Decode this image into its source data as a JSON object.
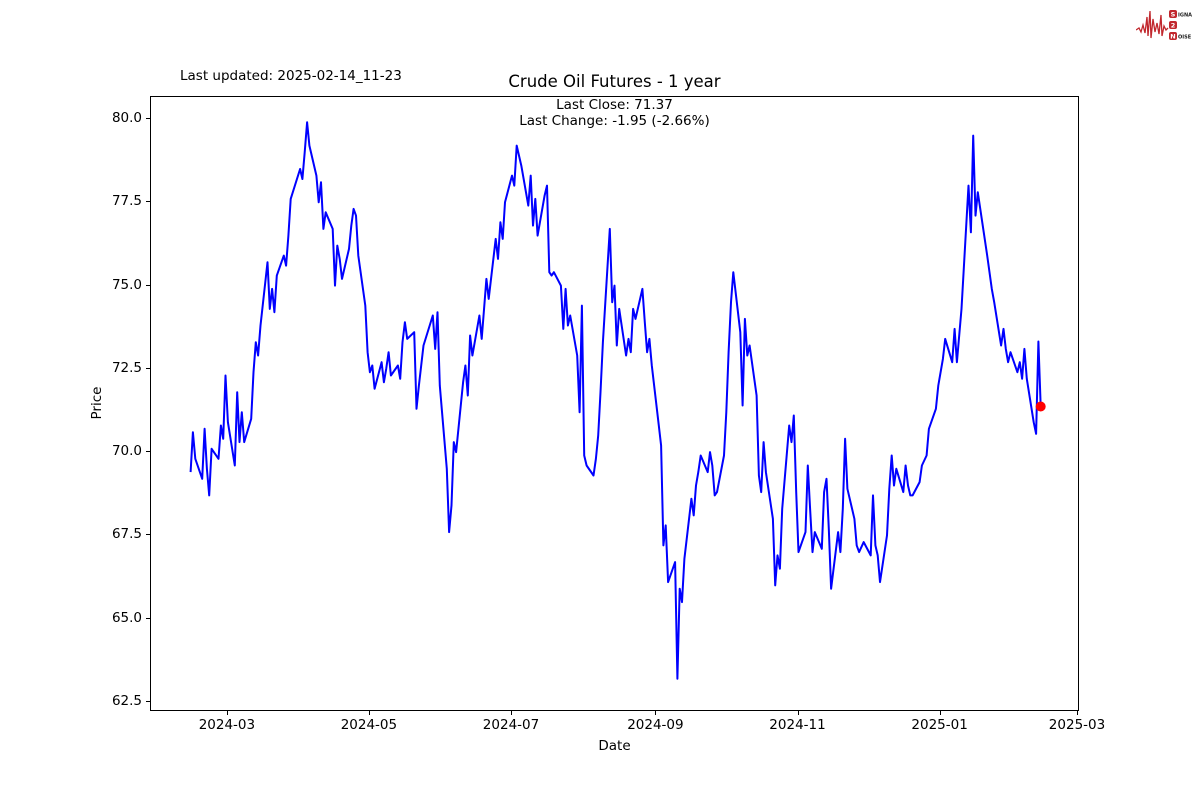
{
  "header": {
    "last_updated": "Last updated: 2025-02-14_11-23"
  },
  "logo": {
    "color": "#c1272d",
    "rows": [
      {
        "boxed": "S",
        "rest": "IGNAL"
      },
      {
        "boxed": "2",
        "rest": ""
      },
      {
        "boxed": "N",
        "rest": "OISE"
      }
    ]
  },
  "chart_data": {
    "type": "line",
    "title": "Crude Oil Futures - 1 year",
    "xlabel": "Date",
    "ylabel": "Price",
    "annotation_line1": "Last Close: 71.37",
    "annotation_line2": "Last Change: -1.95 (-2.66%)",
    "last_close": 71.37,
    "last_change": -1.95,
    "last_change_pct": "-2.66%",
    "grid": false,
    "legend": "none",
    "line_color": "#0000ff",
    "line_width": 2,
    "marker": {
      "date": "2025-02-13",
      "price": 71.37,
      "color": "#ff0000",
      "radius": 5
    },
    "x_domain": [
      "2024-01-28",
      "2025-03-01"
    ],
    "y_domain": [
      62.26,
      80.66
    ],
    "x_ticks": [
      {
        "value": "2024-03-01",
        "label": "2024-03"
      },
      {
        "value": "2024-05-01",
        "label": "2024-05"
      },
      {
        "value": "2024-07-01",
        "label": "2024-07"
      },
      {
        "value": "2024-09-01",
        "label": "2024-09"
      },
      {
        "value": "2024-11-01",
        "label": "2024-11"
      },
      {
        "value": "2025-01-01",
        "label": "2025-01"
      },
      {
        "value": "2025-03-01",
        "label": "2025-03"
      }
    ],
    "y_ticks": [
      {
        "value": 62.5,
        "label": "62.5"
      },
      {
        "value": 65.0,
        "label": "65.0"
      },
      {
        "value": 67.5,
        "label": "67.5"
      },
      {
        "value": 70.0,
        "label": "70.0"
      },
      {
        "value": 72.5,
        "label": "72.5"
      },
      {
        "value": 75.0,
        "label": "75.0"
      },
      {
        "value": 77.5,
        "label": "77.5"
      },
      {
        "value": 80.0,
        "label": "80.0"
      }
    ],
    "series": [
      {
        "name": "Crude Oil Futures",
        "points": [
          [
            "2024-02-14",
            69.4
          ],
          [
            "2024-02-15",
            70.6
          ],
          [
            "2024-02-16",
            69.8
          ],
          [
            "2024-02-19",
            69.2
          ],
          [
            "2024-02-20",
            70.7
          ],
          [
            "2024-02-21",
            69.5
          ],
          [
            "2024-02-22",
            68.7
          ],
          [
            "2024-02-23",
            70.1
          ],
          [
            "2024-02-26",
            69.8
          ],
          [
            "2024-02-27",
            70.8
          ],
          [
            "2024-02-28",
            70.4
          ],
          [
            "2024-02-29",
            72.3
          ],
          [
            "2024-03-01",
            70.9
          ],
          [
            "2024-03-04",
            69.6
          ],
          [
            "2024-03-05",
            71.8
          ],
          [
            "2024-03-06",
            70.3
          ],
          [
            "2024-03-07",
            71.2
          ],
          [
            "2024-03-08",
            70.3
          ],
          [
            "2024-03-11",
            71.0
          ],
          [
            "2024-03-12",
            72.4
          ],
          [
            "2024-03-13",
            73.3
          ],
          [
            "2024-03-14",
            72.9
          ],
          [
            "2024-03-15",
            73.8
          ],
          [
            "2024-03-18",
            75.7
          ],
          [
            "2024-03-19",
            74.3
          ],
          [
            "2024-03-20",
            74.9
          ],
          [
            "2024-03-21",
            74.2
          ],
          [
            "2024-03-22",
            75.3
          ],
          [
            "2024-03-25",
            75.9
          ],
          [
            "2024-03-26",
            75.6
          ],
          [
            "2024-03-27",
            76.5
          ],
          [
            "2024-03-28",
            77.6
          ],
          [
            "2024-04-01",
            78.5
          ],
          [
            "2024-04-02",
            78.2
          ],
          [
            "2024-04-03",
            79.0
          ],
          [
            "2024-04-04",
            79.9
          ],
          [
            "2024-04-05",
            79.2
          ],
          [
            "2024-04-08",
            78.3
          ],
          [
            "2024-04-09",
            77.5
          ],
          [
            "2024-04-10",
            78.1
          ],
          [
            "2024-04-11",
            76.7
          ],
          [
            "2024-04-12",
            77.2
          ],
          [
            "2024-04-15",
            76.7
          ],
          [
            "2024-04-16",
            75.0
          ],
          [
            "2024-04-17",
            76.2
          ],
          [
            "2024-04-18",
            75.8
          ],
          [
            "2024-04-19",
            75.2
          ],
          [
            "2024-04-22",
            76.1
          ],
          [
            "2024-04-23",
            76.8
          ],
          [
            "2024-04-24",
            77.3
          ],
          [
            "2024-04-25",
            77.1
          ],
          [
            "2024-04-26",
            75.9
          ],
          [
            "2024-04-29",
            74.4
          ],
          [
            "2024-04-30",
            73.0
          ],
          [
            "2024-05-01",
            72.4
          ],
          [
            "2024-05-02",
            72.6
          ],
          [
            "2024-05-03",
            71.9
          ],
          [
            "2024-05-06",
            72.7
          ],
          [
            "2024-05-07",
            72.1
          ],
          [
            "2024-05-08",
            72.5
          ],
          [
            "2024-05-09",
            73.0
          ],
          [
            "2024-05-10",
            72.3
          ],
          [
            "2024-05-13",
            72.6
          ],
          [
            "2024-05-14",
            72.2
          ],
          [
            "2024-05-15",
            73.3
          ],
          [
            "2024-05-16",
            73.9
          ],
          [
            "2024-05-17",
            73.4
          ],
          [
            "2024-05-20",
            73.6
          ],
          [
            "2024-05-21",
            71.3
          ],
          [
            "2024-05-22",
            72.0
          ],
          [
            "2024-05-23",
            72.6
          ],
          [
            "2024-05-24",
            73.2
          ],
          [
            "2024-05-28",
            74.1
          ],
          [
            "2024-05-29",
            73.1
          ],
          [
            "2024-05-30",
            74.2
          ],
          [
            "2024-05-31",
            72.0
          ],
          [
            "2024-06-03",
            69.5
          ],
          [
            "2024-06-04",
            67.6
          ],
          [
            "2024-06-05",
            68.4
          ],
          [
            "2024-06-06",
            70.3
          ],
          [
            "2024-06-07",
            70.0
          ],
          [
            "2024-06-10",
            72.1
          ],
          [
            "2024-06-11",
            72.6
          ],
          [
            "2024-06-12",
            71.7
          ],
          [
            "2024-06-13",
            73.5
          ],
          [
            "2024-06-14",
            72.9
          ],
          [
            "2024-06-17",
            74.1
          ],
          [
            "2024-06-18",
            73.4
          ],
          [
            "2024-06-20",
            75.2
          ],
          [
            "2024-06-21",
            74.6
          ],
          [
            "2024-06-24",
            76.4
          ],
          [
            "2024-06-25",
            75.8
          ],
          [
            "2024-06-26",
            76.9
          ],
          [
            "2024-06-27",
            76.4
          ],
          [
            "2024-06-28",
            77.5
          ],
          [
            "2024-07-01",
            78.3
          ],
          [
            "2024-07-02",
            78.0
          ],
          [
            "2024-07-03",
            79.2
          ],
          [
            "2024-07-05",
            78.6
          ],
          [
            "2024-07-08",
            77.4
          ],
          [
            "2024-07-09",
            78.3
          ],
          [
            "2024-07-10",
            76.8
          ],
          [
            "2024-07-11",
            77.6
          ],
          [
            "2024-07-12",
            76.5
          ],
          [
            "2024-07-15",
            77.7
          ],
          [
            "2024-07-16",
            78.0
          ],
          [
            "2024-07-17",
            75.4
          ],
          [
            "2024-07-18",
            75.3
          ],
          [
            "2024-07-19",
            75.4
          ],
          [
            "2024-07-22",
            75.0
          ],
          [
            "2024-07-23",
            73.7
          ],
          [
            "2024-07-24",
            74.9
          ],
          [
            "2024-07-25",
            73.8
          ],
          [
            "2024-07-26",
            74.1
          ],
          [
            "2024-07-29",
            72.9
          ],
          [
            "2024-07-30",
            71.2
          ],
          [
            "2024-07-31",
            74.4
          ],
          [
            "2024-08-01",
            69.9
          ],
          [
            "2024-08-02",
            69.6
          ],
          [
            "2024-08-05",
            69.3
          ],
          [
            "2024-08-06",
            69.8
          ],
          [
            "2024-08-07",
            70.5
          ],
          [
            "2024-08-08",
            71.8
          ],
          [
            "2024-08-09",
            73.3
          ],
          [
            "2024-08-12",
            76.7
          ],
          [
            "2024-08-13",
            74.5
          ],
          [
            "2024-08-14",
            75.0
          ],
          [
            "2024-08-15",
            73.2
          ],
          [
            "2024-08-16",
            74.3
          ],
          [
            "2024-08-19",
            72.9
          ],
          [
            "2024-08-20",
            73.4
          ],
          [
            "2024-08-21",
            73.0
          ],
          [
            "2024-08-22",
            74.3
          ],
          [
            "2024-08-23",
            74.0
          ],
          [
            "2024-08-26",
            74.9
          ],
          [
            "2024-08-27",
            73.9
          ],
          [
            "2024-08-28",
            73.0
          ],
          [
            "2024-08-29",
            73.4
          ],
          [
            "2024-08-30",
            72.6
          ],
          [
            "2024-09-02",
            70.8
          ],
          [
            "2024-09-03",
            70.2
          ],
          [
            "2024-09-04",
            67.2
          ],
          [
            "2024-09-05",
            67.8
          ],
          [
            "2024-09-06",
            66.1
          ],
          [
            "2024-09-09",
            66.7
          ],
          [
            "2024-09-10",
            63.2
          ],
          [
            "2024-09-11",
            65.9
          ],
          [
            "2024-09-12",
            65.5
          ],
          [
            "2024-09-13",
            66.8
          ],
          [
            "2024-09-16",
            68.6
          ],
          [
            "2024-09-17",
            68.1
          ],
          [
            "2024-09-18",
            69.0
          ],
          [
            "2024-09-19",
            69.4
          ],
          [
            "2024-09-20",
            69.9
          ],
          [
            "2024-09-23",
            69.4
          ],
          [
            "2024-09-24",
            70.0
          ],
          [
            "2024-09-25",
            69.6
          ],
          [
            "2024-09-26",
            68.7
          ],
          [
            "2024-09-27",
            68.8
          ],
          [
            "2024-09-30",
            69.9
          ],
          [
            "2024-10-01",
            71.2
          ],
          [
            "2024-10-02",
            73.0
          ],
          [
            "2024-10-03",
            74.5
          ],
          [
            "2024-10-04",
            75.4
          ],
          [
            "2024-10-07",
            73.6
          ],
          [
            "2024-10-08",
            71.4
          ],
          [
            "2024-10-09",
            74.0
          ],
          [
            "2024-10-10",
            72.9
          ],
          [
            "2024-10-11",
            73.2
          ],
          [
            "2024-10-14",
            71.7
          ],
          [
            "2024-10-15",
            69.3
          ],
          [
            "2024-10-16",
            68.8
          ],
          [
            "2024-10-17",
            70.3
          ],
          [
            "2024-10-18",
            69.4
          ],
          [
            "2024-10-21",
            68.0
          ],
          [
            "2024-10-22",
            66.0
          ],
          [
            "2024-10-23",
            66.9
          ],
          [
            "2024-10-24",
            66.5
          ],
          [
            "2024-10-25",
            68.3
          ],
          [
            "2024-10-28",
            70.8
          ],
          [
            "2024-10-29",
            70.3
          ],
          [
            "2024-10-30",
            71.1
          ],
          [
            "2024-10-31",
            68.8
          ],
          [
            "2024-11-01",
            67.0
          ],
          [
            "2024-11-04",
            67.6
          ],
          [
            "2024-11-05",
            69.6
          ],
          [
            "2024-11-06",
            68.3
          ],
          [
            "2024-11-07",
            67.0
          ],
          [
            "2024-11-08",
            67.6
          ],
          [
            "2024-11-11",
            67.1
          ],
          [
            "2024-11-12",
            68.8
          ],
          [
            "2024-11-13",
            69.2
          ],
          [
            "2024-11-14",
            67.7
          ],
          [
            "2024-11-15",
            65.9
          ],
          [
            "2024-11-18",
            67.6
          ],
          [
            "2024-11-19",
            67.0
          ],
          [
            "2024-11-20",
            68.3
          ],
          [
            "2024-11-21",
            70.4
          ],
          [
            "2024-11-22",
            68.9
          ],
          [
            "2024-11-25",
            68.0
          ],
          [
            "2024-11-26",
            67.2
          ],
          [
            "2024-11-27",
            67.0
          ],
          [
            "2024-11-29",
            67.3
          ],
          [
            "2024-12-02",
            66.9
          ],
          [
            "2024-12-03",
            68.7
          ],
          [
            "2024-12-04",
            67.2
          ],
          [
            "2024-12-05",
            66.9
          ],
          [
            "2024-12-06",
            66.1
          ],
          [
            "2024-12-09",
            67.5
          ],
          [
            "2024-12-10",
            68.9
          ],
          [
            "2024-12-11",
            69.9
          ],
          [
            "2024-12-12",
            69.0
          ],
          [
            "2024-12-13",
            69.5
          ],
          [
            "2024-12-16",
            68.8
          ],
          [
            "2024-12-17",
            69.6
          ],
          [
            "2024-12-18",
            69.0
          ],
          [
            "2024-12-19",
            68.7
          ],
          [
            "2024-12-20",
            68.7
          ],
          [
            "2024-12-23",
            69.1
          ],
          [
            "2024-12-24",
            69.6
          ],
          [
            "2024-12-26",
            69.9
          ],
          [
            "2024-12-27",
            70.7
          ],
          [
            "2024-12-30",
            71.3
          ],
          [
            "2024-12-31",
            72.0
          ],
          [
            "2025-01-02",
            72.8
          ],
          [
            "2025-01-03",
            73.4
          ],
          [
            "2025-01-06",
            72.7
          ],
          [
            "2025-01-07",
            73.7
          ],
          [
            "2025-01-08",
            72.7
          ],
          [
            "2025-01-10",
            74.3
          ],
          [
            "2025-01-13",
            78.0
          ],
          [
            "2025-01-14",
            76.6
          ],
          [
            "2025-01-15",
            79.5
          ],
          [
            "2025-01-16",
            77.1
          ],
          [
            "2025-01-17",
            77.8
          ],
          [
            "2025-01-21",
            75.9
          ],
          [
            "2025-01-22",
            75.4
          ],
          [
            "2025-01-23",
            74.9
          ],
          [
            "2025-01-24",
            74.5
          ],
          [
            "2025-01-27",
            73.2
          ],
          [
            "2025-01-28",
            73.7
          ],
          [
            "2025-01-29",
            73.1
          ],
          [
            "2025-01-30",
            72.7
          ],
          [
            "2025-01-31",
            73.0
          ],
          [
            "2025-02-03",
            72.4
          ],
          [
            "2025-02-04",
            72.7
          ],
          [
            "2025-02-05",
            72.2
          ],
          [
            "2025-02-06",
            73.1
          ],
          [
            "2025-02-07",
            72.2
          ],
          [
            "2025-02-10",
            70.9
          ],
          [
            "2025-02-11",
            70.55
          ],
          [
            "2025-02-12",
            73.32
          ],
          [
            "2025-02-13",
            71.37
          ]
        ]
      }
    ]
  }
}
